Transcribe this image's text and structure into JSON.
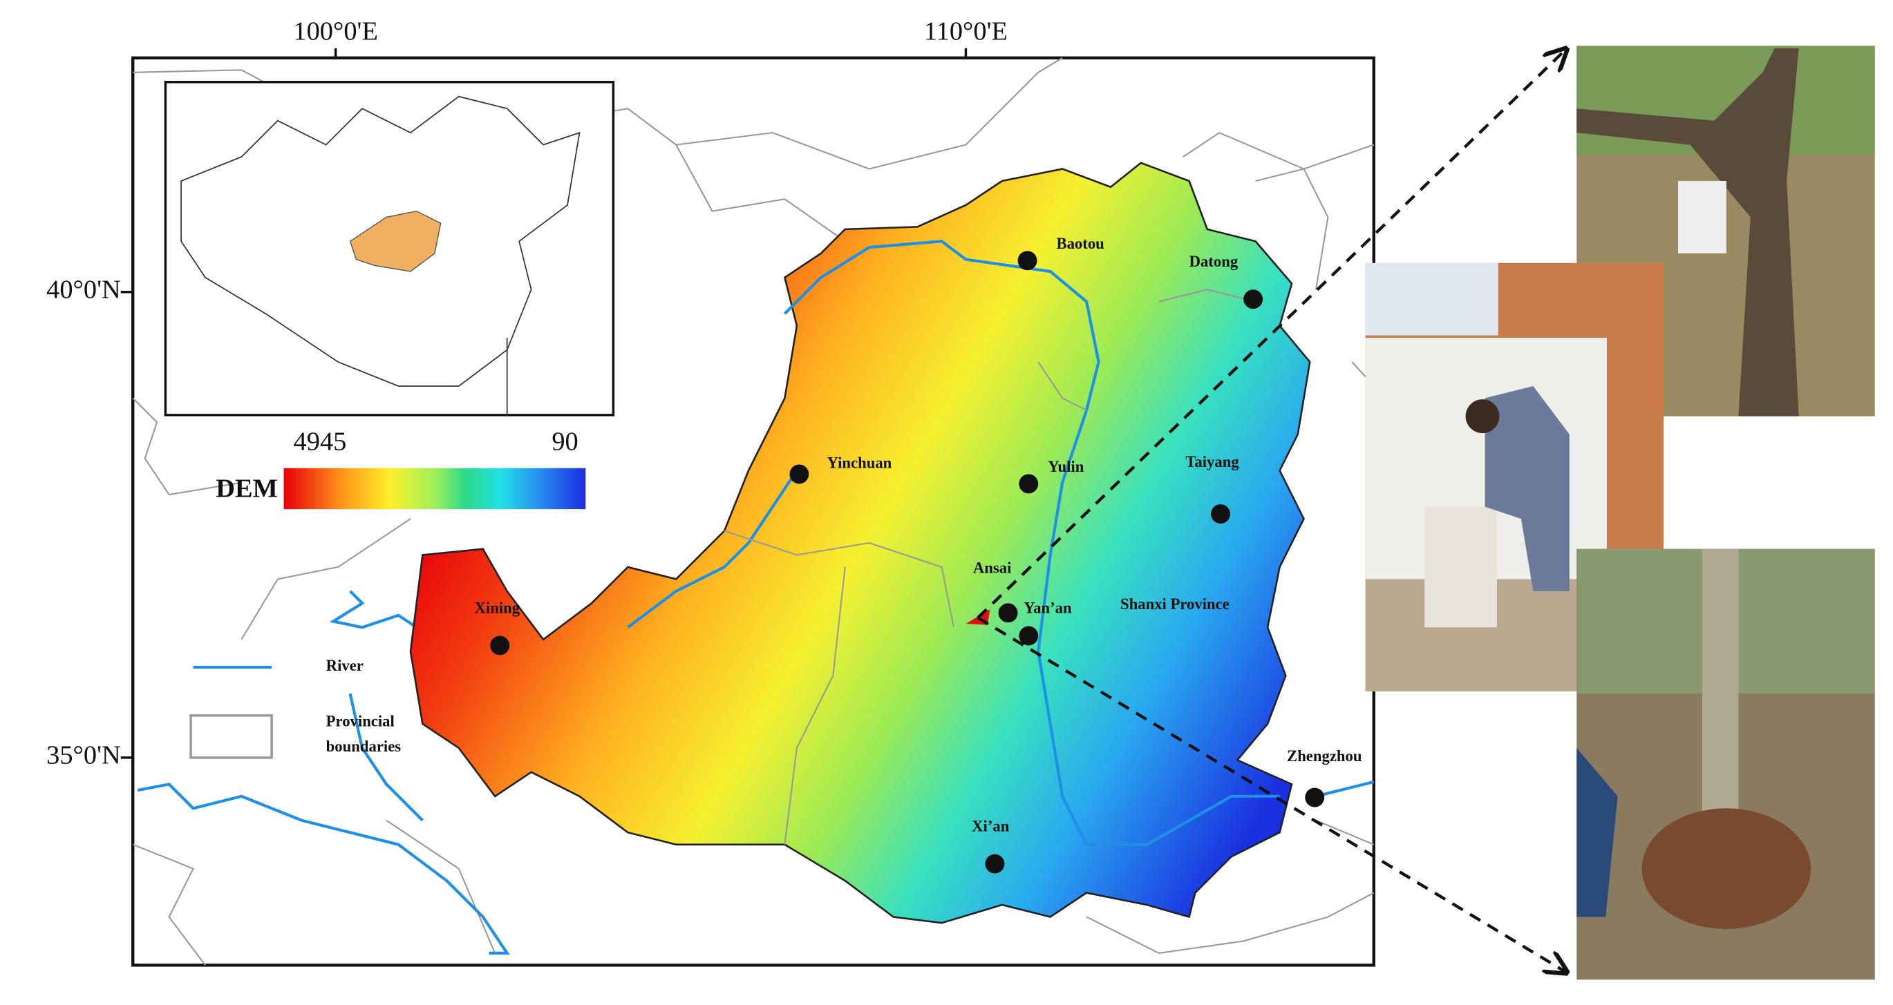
{
  "axes": {
    "top_labels": [
      "100°0'E",
      "110°0'E"
    ],
    "left_labels": [
      "40°0'N",
      "35°0'N"
    ]
  },
  "legend": {
    "dem_label": "DEM",
    "dem_max": "4945",
    "dem_min": "90",
    "river": "River",
    "boundaries": [
      "Provincial",
      "boundaries"
    ]
  },
  "cities": [
    "Baotou",
    "Datong",
    "Yinchuan",
    "Yulin",
    "Taiyang",
    "Ansai",
    "Yan’an",
    "Xining",
    "Shanxi Province",
    "Zhengzhou",
    "Xi’an"
  ]
}
